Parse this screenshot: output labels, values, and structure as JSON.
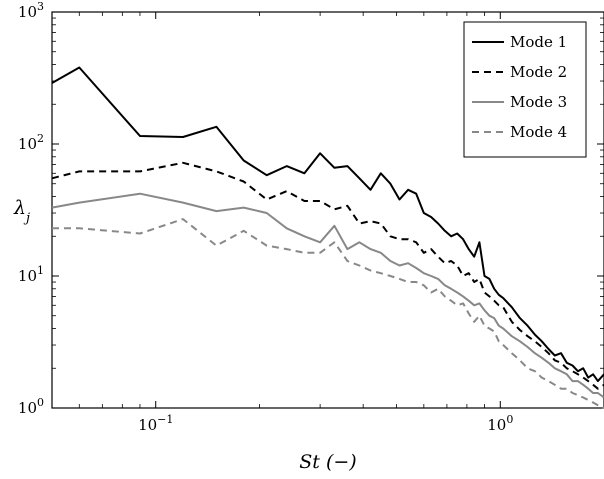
{
  "chart_data": {
    "type": "line",
    "xlabel": "St (−)",
    "ylabel": "λ_j",
    "xscale": "log",
    "yscale": "log",
    "xlim": [
      0.05,
      2.0
    ],
    "ylim": [
      1,
      1000
    ],
    "x_ticks": [
      {
        "value": 0.1,
        "base": "10",
        "exp": "−1"
      },
      {
        "value": 1,
        "base": "10",
        "exp": "0"
      }
    ],
    "y_ticks": [
      {
        "value": 1,
        "base": "10",
        "exp": "0"
      },
      {
        "value": 10,
        "base": "10",
        "exp": "1"
      },
      {
        "value": 100,
        "base": "10",
        "exp": "2"
      },
      {
        "value": 1000,
        "base": "10",
        "exp": "3"
      }
    ],
    "legend_position": "top-right",
    "grid": false,
    "series": [
      {
        "name": "Mode 1",
        "color": "#000000",
        "dash": "solid",
        "x": [
          0.05,
          0.06,
          0.09,
          0.12,
          0.15,
          0.18,
          0.21,
          0.24,
          0.27,
          0.3,
          0.33,
          0.36,
          0.39,
          0.42,
          0.45,
          0.48,
          0.51,
          0.54,
          0.57,
          0.6,
          0.63,
          0.66,
          0.69,
          0.72,
          0.75,
          0.78,
          0.81,
          0.84,
          0.87,
          0.9,
          0.93,
          0.96,
          0.99,
          1.02,
          1.08,
          1.14,
          1.2,
          1.26,
          1.32,
          1.38,
          1.44,
          1.5,
          1.56,
          1.62,
          1.68,
          1.74,
          1.8,
          1.86,
          1.92,
          2.0
        ],
        "y": [
          290,
          380,
          115,
          113,
          135,
          75,
          58,
          68,
          60,
          85,
          66,
          68,
          55,
          45,
          60,
          50,
          38,
          45,
          42,
          30,
          28,
          25,
          22,
          20,
          21,
          19,
          16,
          14,
          18,
          10,
          9.5,
          8,
          7.2,
          6.8,
          5.8,
          4.8,
          4.2,
          3.6,
          3.2,
          2.8,
          2.5,
          2.6,
          2.2,
          2.1,
          1.9,
          2.0,
          1.7,
          1.8,
          1.6,
          1.8
        ]
      },
      {
        "name": "Mode 2",
        "color": "#000000",
        "dash": "dashed",
        "x": [
          0.05,
          0.06,
          0.09,
          0.12,
          0.15,
          0.18,
          0.21,
          0.24,
          0.27,
          0.3,
          0.33,
          0.36,
          0.39,
          0.42,
          0.45,
          0.48,
          0.51,
          0.54,
          0.57,
          0.6,
          0.63,
          0.66,
          0.69,
          0.72,
          0.75,
          0.78,
          0.81,
          0.84,
          0.87,
          0.9,
          0.93,
          0.96,
          0.99,
          1.02,
          1.08,
          1.14,
          1.2,
          1.26,
          1.32,
          1.38,
          1.44,
          1.5,
          1.56,
          1.62,
          1.68,
          1.74,
          1.8,
          1.86,
          1.92,
          2.0
        ],
        "y": [
          55,
          62,
          62,
          72,
          62,
          52,
          38,
          44,
          37,
          37,
          32,
          34,
          25,
          26,
          25,
          20,
          19,
          19,
          18,
          15,
          16,
          14,
          12.5,
          13,
          12,
          10,
          10.5,
          9,
          9.5,
          7.5,
          7,
          6.5,
          6,
          5.8,
          4.5,
          3.9,
          3.5,
          3.2,
          2.9,
          2.6,
          2.3,
          2.2,
          2.0,
          1.9,
          1.8,
          1.7,
          1.6,
          1.5,
          1.4,
          1.5
        ]
      },
      {
        "name": "Mode 3",
        "color": "#888888",
        "dash": "solid",
        "x": [
          0.05,
          0.06,
          0.09,
          0.12,
          0.15,
          0.18,
          0.21,
          0.24,
          0.27,
          0.3,
          0.33,
          0.36,
          0.39,
          0.42,
          0.45,
          0.48,
          0.51,
          0.54,
          0.57,
          0.6,
          0.63,
          0.66,
          0.69,
          0.72,
          0.75,
          0.78,
          0.81,
          0.84,
          0.87,
          0.9,
          0.93,
          0.96,
          0.99,
          1.02,
          1.08,
          1.14,
          1.2,
          1.26,
          1.32,
          1.38,
          1.44,
          1.5,
          1.56,
          1.62,
          1.68,
          1.74,
          1.8,
          1.86,
          1.92,
          2.0
        ],
        "y": [
          33,
          36,
          42,
          36,
          31,
          33,
          30,
          23,
          20,
          18,
          24,
          16,
          18,
          16,
          15,
          13,
          12,
          12.5,
          11.5,
          10.5,
          10,
          9.5,
          8.5,
          8,
          7.5,
          7,
          6.5,
          6,
          6.2,
          5.5,
          5,
          4.8,
          4.2,
          4,
          3.5,
          3.2,
          2.9,
          2.6,
          2.4,
          2.2,
          2.0,
          1.9,
          1.8,
          1.6,
          1.6,
          1.5,
          1.4,
          1.3,
          1.3,
          1.2
        ]
      },
      {
        "name": "Mode 4",
        "color": "#888888",
        "dash": "dashed",
        "x": [
          0.05,
          0.06,
          0.09,
          0.12,
          0.15,
          0.18,
          0.21,
          0.24,
          0.27,
          0.3,
          0.33,
          0.36,
          0.39,
          0.42,
          0.45,
          0.48,
          0.51,
          0.54,
          0.57,
          0.6,
          0.63,
          0.66,
          0.69,
          0.72,
          0.75,
          0.78,
          0.81,
          0.84,
          0.87,
          0.9,
          0.93,
          0.96,
          0.99,
          1.02,
          1.08,
          1.14,
          1.2,
          1.26,
          1.32,
          1.38,
          1.44,
          1.5,
          1.56,
          1.62,
          1.68,
          1.74,
          1.8,
          1.86,
          1.92,
          2.0
        ],
        "y": [
          23,
          23,
          21,
          27,
          17,
          22,
          17,
          16,
          15,
          15,
          18,
          13,
          12,
          11,
          10.5,
          10,
          9.5,
          9,
          9,
          8.5,
          7.5,
          8,
          7,
          6.5,
          6,
          6.2,
          5.2,
          4.5,
          5,
          4.2,
          4,
          3.8,
          3.2,
          3.0,
          2.6,
          2.3,
          2.0,
          1.9,
          1.7,
          1.6,
          1.5,
          1.4,
          1.4,
          1.3,
          1.25,
          1.2,
          1.15,
          1.1,
          1.05,
          1.0
        ]
      }
    ]
  }
}
